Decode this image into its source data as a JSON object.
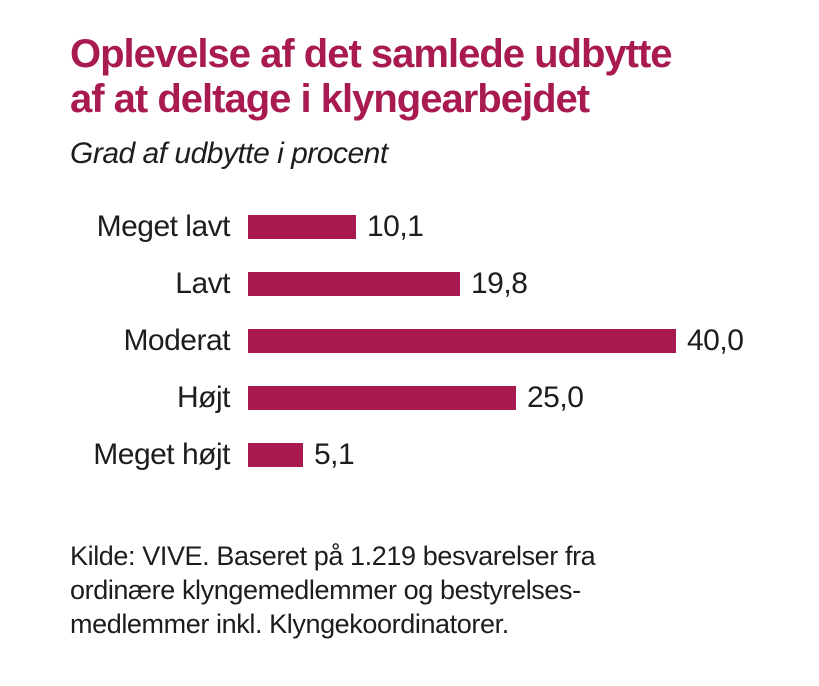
{
  "title": {
    "line1": "Oplevelse af det samlede udbytte",
    "line2": "af at deltage i klyngearbejdet"
  },
  "subtitle": "Grad af udbytte i procent",
  "source": {
    "line1": "Kilde: VIVE. Baseret på 1.219 besvarelser fra",
    "line2": "ordinære klyngemedlemmer og bestyrelses-",
    "line3": "medlemmer inkl. Klyngekoordinatorer."
  },
  "colors": {
    "accent": "#a81a50",
    "text": "#1d1d1b",
    "background": "#ffffff"
  },
  "chart_data": {
    "type": "bar",
    "orientation": "horizontal",
    "title": "Oplevelse af det samlede udbytte af at deltage i klyngearbejdet",
    "subtitle": "Grad af udbytte i procent",
    "categories": [
      "Meget lavt",
      "Lavt",
      "Moderat",
      "Højt",
      "Meget højt"
    ],
    "values": [
      10.1,
      19.8,
      40.0,
      25.0,
      5.1
    ],
    "value_labels": [
      "10,1",
      "19,8",
      "40,0",
      "25,0",
      "5,1"
    ],
    "unit": "percent",
    "xlabel": "",
    "ylabel": "",
    "xlim": [
      0,
      40
    ],
    "grid": false,
    "legend": false,
    "bar_color": "#a81a50",
    "value_label_position": "end-of-bar"
  }
}
